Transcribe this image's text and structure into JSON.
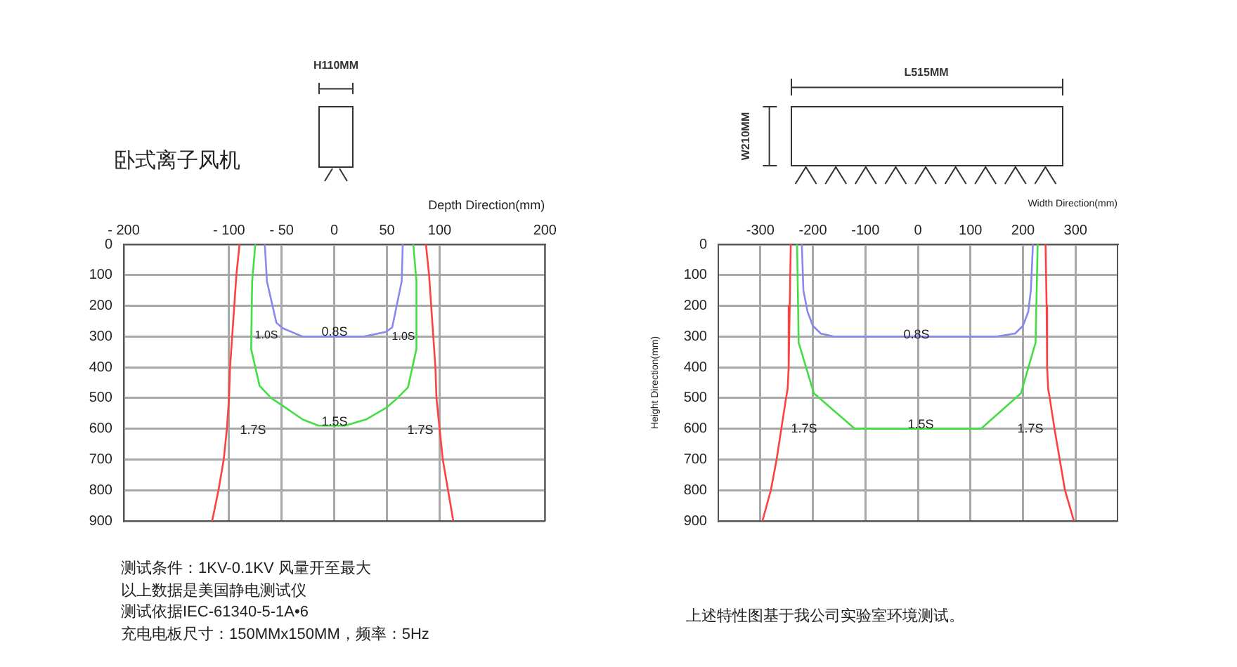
{
  "chart_data": [
    {
      "type": "line",
      "title": "卧式离子风机",
      "xlabel": "Depth Direction(mm)",
      "xlim": [
        -200,
        200
      ],
      "xticks": [
        {
          "value": -200,
          "label": "- 200"
        },
        {
          "value": -100,
          "label": "- 100"
        },
        {
          "value": -50,
          "label": "- 50"
        },
        0,
        50,
        100,
        200
      ],
      "ylim": [
        900,
        0
      ],
      "yticks": [
        0,
        100,
        200,
        300,
        400,
        500,
        600,
        700,
        800,
        900
      ],
      "grid": true,
      "marker": "none",
      "series": [
        {
          "color": "#ff4040",
          "x": [
            -90,
            -93,
            -95,
            -97,
            -99,
            -100,
            -102,
            -105,
            -110,
            -116
          ],
          "values": [
            0,
            100,
            200,
            300,
            400,
            500,
            600,
            700,
            800,
            900
          ]
        },
        {
          "color": "#ff4040",
          "x": [
            87,
            90,
            92,
            94,
            96,
            97,
            100,
            103,
            108,
            113
          ],
          "values": [
            0,
            100,
            200,
            300,
            400,
            500,
            600,
            700,
            800,
            900
          ]
        },
        {
          "color": "#44dd44",
          "x": [
            -75,
            -78,
            -79,
            -71,
            -60,
            -49,
            -30,
            -15,
            10,
            30,
            50,
            60,
            70,
            78,
            78,
            75
          ],
          "values": [
            0,
            120,
            340,
            460,
            500,
            525,
            570,
            590,
            590,
            570,
            530,
            500,
            465,
            340,
            120,
            0
          ]
        },
        {
          "color": "#8888ee",
          "x": [
            -66,
            -64,
            -55,
            -49,
            -30,
            28,
            49,
            55,
            64,
            65
          ],
          "values": [
            0,
            120,
            255,
            273,
            300,
            300,
            285,
            270,
            120,
            0
          ]
        }
      ],
      "annotations": [
        "1.0S",
        "0.8S",
        "1.0S",
        "1.7S",
        "1.5S",
        "1.7S",
        "H110MM",
        "测试条件：1KV-0.1KV  风量开至最大",
        "以上数据是美国静电测试仪",
        "测试依据IEC-61340-5-1A•6",
        "充电电板尺寸：150MMx150MM，频率：5Hz"
      ]
    },
    {
      "type": "line",
      "xlabel": "Width Direction(mm)",
      "ylabel": "Height Direction(mm)",
      "xlim": [
        -380,
        380
      ],
      "xticks": [
        -300,
        -200,
        -100,
        0,
        100,
        200,
        300
      ],
      "ylim": [
        900,
        0
      ],
      "yticks": [
        0,
        100,
        200,
        300,
        400,
        500,
        600,
        700,
        800,
        900
      ],
      "grid": true,
      "marker": "none",
      "series": [
        {
          "color": "#ff4040",
          "x": [
            -242,
            -244,
            -246,
            -248,
            -251,
            -260,
            -269,
            -280,
            -296
          ],
          "values": [
            0,
            200,
            400,
            470,
            500,
            600,
            700,
            800,
            900
          ]
        },
        {
          "color": "#ff4040",
          "x": [
            243,
            245,
            246,
            248,
            251,
            260,
            270,
            280,
            297
          ],
          "values": [
            0,
            200,
            400,
            470,
            500,
            600,
            700,
            800,
            900
          ]
        },
        {
          "color": "#44dd44",
          "x": [
            -230,
            -227,
            -198,
            -120,
            120,
            196,
            224,
            228
          ],
          "values": [
            0,
            320,
            485,
            600,
            600,
            485,
            320,
            0
          ]
        },
        {
          "color": "#8888ee",
          "x": [
            -221,
            -218,
            -210,
            -200,
            -185,
            -160,
            150,
            185,
            200,
            210,
            215,
            219
          ],
          "values": [
            0,
            150,
            220,
            265,
            290,
            300,
            300,
            290,
            265,
            220,
            150,
            0
          ]
        }
      ],
      "annotations": [
        "0.8S",
        "1.7S",
        "1.5S",
        "1.7S",
        "L515MM",
        "W210MM",
        "上述特性图基于我公司实验室环境测试。"
      ]
    }
  ]
}
